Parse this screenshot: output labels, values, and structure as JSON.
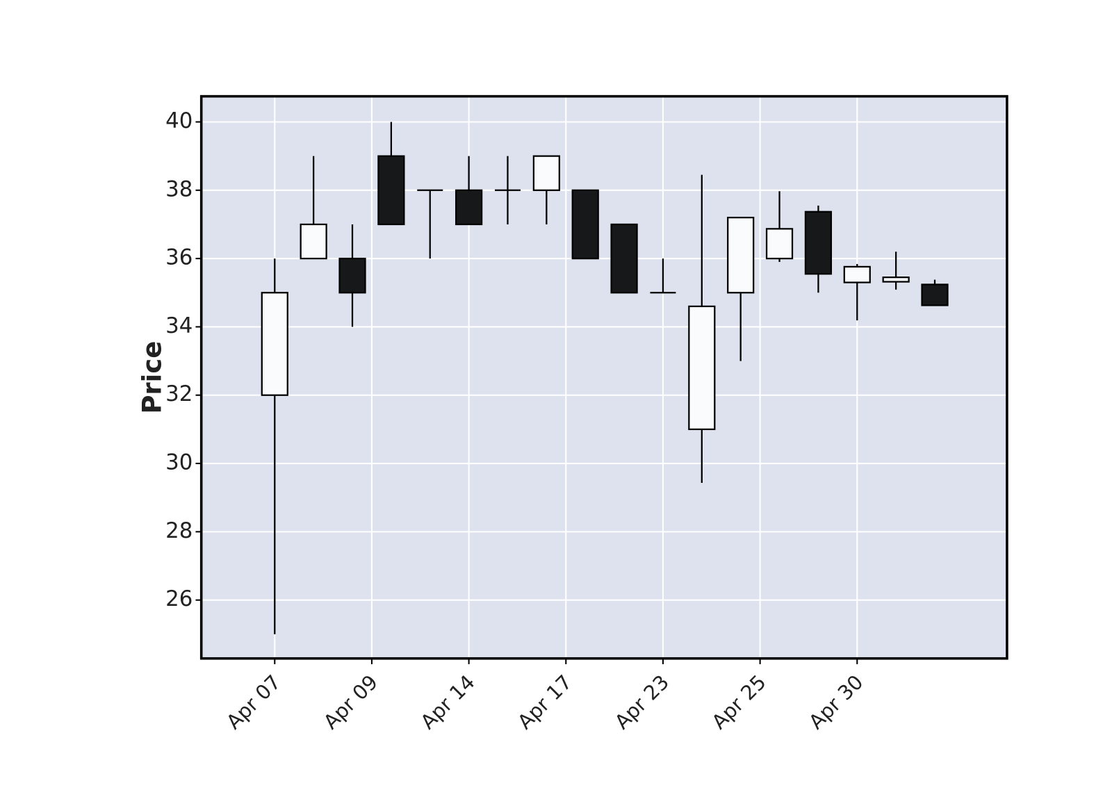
{
  "chart_data": {
    "type": "candlestick",
    "ylabel": "Price",
    "x": [
      0,
      1,
      2,
      3,
      4,
      5,
      6,
      7,
      8,
      9,
      10,
      11,
      12,
      13,
      14,
      15,
      16,
      17
    ],
    "open": [
      32,
      36,
      36,
      39,
      38,
      38,
      38,
      38,
      38,
      37,
      35,
      31,
      35,
      36,
      37.37,
      35.3,
      35.32,
      35.24
    ],
    "high": [
      36,
      39,
      37,
      40,
      38,
      39,
      39,
      39,
      38,
      37,
      36,
      38.45,
      37.2,
      37.97,
      37.55,
      35.84,
      36.2,
      35.38
    ],
    "low": [
      25,
      36,
      34,
      37,
      36,
      37,
      37,
      37,
      36,
      35,
      35,
      29.43,
      33,
      35.9,
      35,
      34.19,
      35.09,
      34.63
    ],
    "close": [
      35,
      37,
      35,
      37,
      38,
      37,
      38,
      39,
      36,
      35,
      35,
      34.6,
      37.2,
      36.87,
      35.55,
      35.76,
      35.45,
      34.63
    ],
    "up_color": "#fafbfd",
    "down_color": "#17181a",
    "edge_color": "#000000",
    "background": "#dde2ee",
    "grid": true,
    "xlim": [
      -1.89,
      18.86
    ],
    "xticks": [
      {
        "value": 0,
        "label": "Apr 07"
      },
      {
        "value": 2.5,
        "label": "Apr 09"
      },
      {
        "value": 5,
        "label": "Apr 14"
      },
      {
        "value": 7.5,
        "label": "Apr 17"
      },
      {
        "value": 10,
        "label": "Apr 23"
      },
      {
        "value": 12.5,
        "label": "Apr 25"
      },
      {
        "value": 15,
        "label": "Apr 30"
      }
    ],
    "ylim": [
      24.29,
      40.75
    ],
    "yticks": [
      26,
      28,
      30,
      32,
      34,
      36,
      38,
      40
    ]
  }
}
